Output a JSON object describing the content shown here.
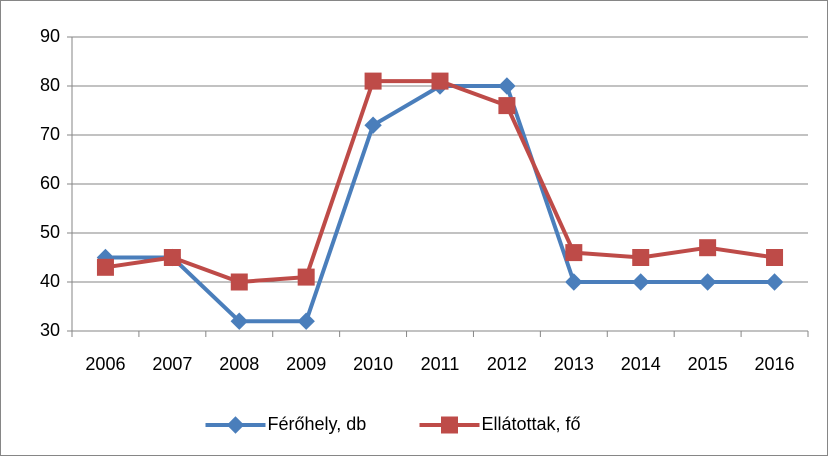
{
  "chart_data": {
    "type": "line",
    "categories": [
      "2006",
      "2007",
      "2008",
      "2009",
      "2010",
      "2011",
      "2012",
      "2013",
      "2014",
      "2015",
      "2016"
    ],
    "series": [
      {
        "name": "Férőhely, db",
        "color": "#4a7ebb",
        "marker": "diamond",
        "values": [
          45,
          45,
          32,
          32,
          72,
          80,
          80,
          40,
          40,
          40,
          40
        ]
      },
      {
        "name": "Ellátottak, fő",
        "color": "#be4b48",
        "marker": "square",
        "values": [
          43,
          45,
          40,
          41,
          81,
          81,
          76,
          46,
          45,
          47,
          45
        ]
      }
    ],
    "ylim": [
      30,
      90
    ],
    "yticks": [
      30,
      40,
      50,
      60,
      70,
      80,
      90
    ],
    "grid": true,
    "legend": "bottom"
  }
}
